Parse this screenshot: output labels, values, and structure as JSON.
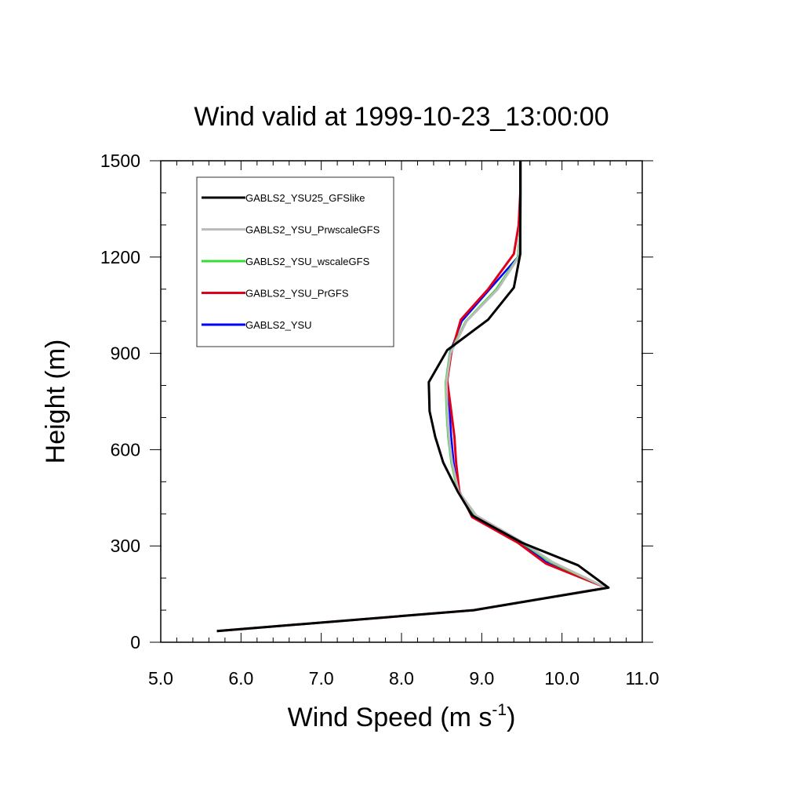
{
  "chart_data": {
    "type": "line",
    "title": "Wind valid at 1999-10-23_13:00:00",
    "xlabel": "Wind Speed (m s",
    "xlabel_superscript": "-1",
    "xlabel_suffix": ")",
    "ylabel": "Height (m)",
    "xlim": [
      5.0,
      11.0
    ],
    "ylim": [
      0,
      1500
    ],
    "xticks": [
      "5.0",
      "6.0",
      "7.0",
      "8.0",
      "9.0",
      "10.0",
      "11.0"
    ],
    "xtick_values": [
      5,
      6,
      7,
      8,
      9,
      10,
      11
    ],
    "yticks": [
      "0",
      "300",
      "600",
      "900",
      "1200",
      "1500"
    ],
    "ytick_values": [
      0,
      300,
      600,
      900,
      1200,
      1500
    ],
    "grid": false,
    "legend_position": "top-left",
    "series": [
      {
        "name": "GABLS2_YSU",
        "color": "#0000ff",
        "width": 2.5,
        "points": [
          [
            5.7,
            35
          ],
          [
            8.9,
            100
          ],
          [
            10.55,
            170
          ],
          [
            9.8,
            250
          ],
          [
            9.5,
            310
          ],
          [
            8.9,
            395
          ],
          [
            8.7,
            470
          ],
          [
            8.65,
            560
          ],
          [
            8.62,
            640
          ],
          [
            8.6,
            720
          ],
          [
            8.57,
            810
          ],
          [
            8.6,
            900
          ],
          [
            8.75,
            1000
          ],
          [
            9.1,
            1100
          ],
          [
            9.45,
            1200
          ],
          [
            9.48,
            1300
          ],
          [
            9.48,
            1400
          ],
          [
            9.48,
            1500
          ]
        ]
      },
      {
        "name": "GABLS2_YSU_PrGFS",
        "color": "#e0001b",
        "width": 3,
        "points": [
          [
            5.7,
            35
          ],
          [
            8.9,
            100
          ],
          [
            10.55,
            170
          ],
          [
            9.8,
            245
          ],
          [
            9.45,
            310
          ],
          [
            8.88,
            390
          ],
          [
            8.72,
            470
          ],
          [
            8.68,
            560
          ],
          [
            8.66,
            640
          ],
          [
            8.62,
            720
          ],
          [
            8.57,
            815
          ],
          [
            8.62,
            900
          ],
          [
            8.74,
            1005
          ],
          [
            9.08,
            1100
          ],
          [
            9.4,
            1210
          ],
          [
            9.46,
            1300
          ],
          [
            9.48,
            1400
          ],
          [
            9.48,
            1500
          ]
        ]
      },
      {
        "name": "GABLS2_YSU_wscaleGFS",
        "color": "#33dd33",
        "width": 2.5,
        "points": [
          [
            5.7,
            35
          ],
          [
            8.9,
            100
          ],
          [
            10.55,
            170
          ],
          [
            9.85,
            250
          ],
          [
            9.5,
            310
          ],
          [
            8.92,
            395
          ],
          [
            8.7,
            470
          ],
          [
            8.62,
            560
          ],
          [
            8.58,
            640
          ],
          [
            8.56,
            720
          ],
          [
            8.55,
            810
          ],
          [
            8.6,
            900
          ],
          [
            8.8,
            1000
          ],
          [
            9.18,
            1100
          ],
          [
            9.45,
            1200
          ],
          [
            9.48,
            1300
          ],
          [
            9.49,
            1400
          ],
          [
            9.49,
            1500
          ]
        ]
      },
      {
        "name": "GABLS2_YSU_PrwscaleGFS",
        "color": "#bbbbbb",
        "width": 3,
        "points": [
          [
            5.7,
            35
          ],
          [
            8.9,
            100
          ],
          [
            10.55,
            170
          ],
          [
            9.88,
            250
          ],
          [
            9.52,
            310
          ],
          [
            8.93,
            395
          ],
          [
            8.71,
            470
          ],
          [
            8.63,
            560
          ],
          [
            8.59,
            640
          ],
          [
            8.57,
            720
          ],
          [
            8.56,
            810
          ],
          [
            8.61,
            900
          ],
          [
            8.81,
            1000
          ],
          [
            9.2,
            1100
          ],
          [
            9.46,
            1200
          ],
          [
            9.48,
            1300
          ],
          [
            9.49,
            1400
          ],
          [
            9.49,
            1500
          ]
        ]
      },
      {
        "name": "GABLS2_YSU25_GFSlike",
        "color": "#000000",
        "width": 3,
        "points": [
          [
            5.7,
            35
          ],
          [
            8.9,
            100
          ],
          [
            10.58,
            170
          ],
          [
            10.2,
            240
          ],
          [
            9.5,
            310
          ],
          [
            8.88,
            395
          ],
          [
            8.7,
            470
          ],
          [
            8.52,
            560
          ],
          [
            8.42,
            640
          ],
          [
            8.35,
            720
          ],
          [
            8.34,
            810
          ],
          [
            8.57,
            910
          ],
          [
            9.08,
            1005
          ],
          [
            9.4,
            1105
          ],
          [
            9.48,
            1210
          ],
          [
            9.48,
            1300
          ],
          [
            9.48,
            1400
          ],
          [
            9.48,
            1500
          ]
        ]
      }
    ],
    "legend_order": [
      "GABLS2_YSU25_GFSlike",
      "GABLS2_YSU_PrwscaleGFS",
      "GABLS2_YSU_wscaleGFS",
      "GABLS2_YSU_PrGFS",
      "GABLS2_YSU"
    ]
  }
}
